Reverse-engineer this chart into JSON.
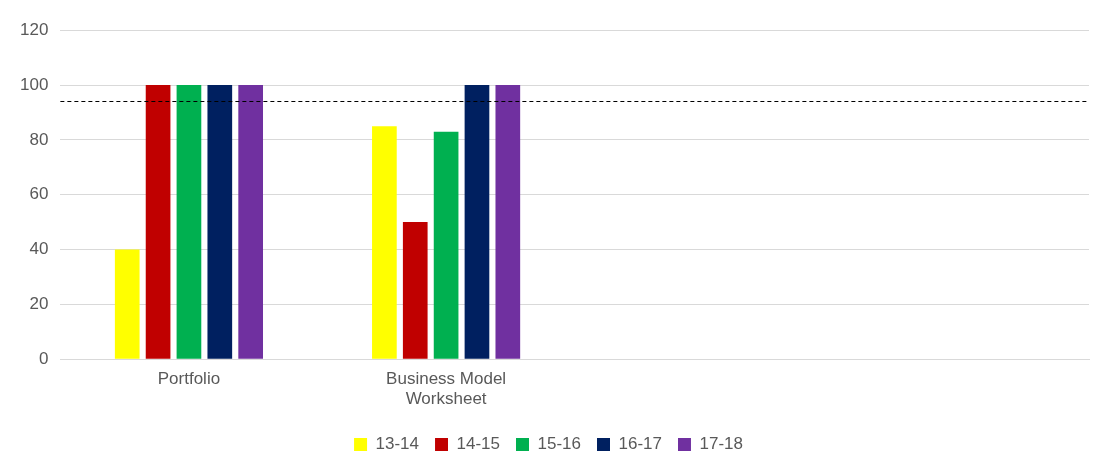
{
  "chart_data": {
    "type": "bar",
    "categories": [
      "Portfolio",
      "Business Model Worksheet",
      null,
      null
    ],
    "series": [
      {
        "name": "13-14",
        "color": "#ffff00",
        "values": [
          40,
          85,
          null,
          null
        ]
      },
      {
        "name": "14-15",
        "color": "#c00000",
        "values": [
          100,
          50,
          null,
          null
        ]
      },
      {
        "name": "15-16",
        "color": "#00b050",
        "values": [
          100,
          83,
          null,
          null
        ]
      },
      {
        "name": "16-17",
        "color": "#002060",
        "values": [
          100,
          100,
          null,
          null
        ]
      },
      {
        "name": "17-18",
        "color": "#7030a0",
        "values": [
          100,
          100,
          null,
          null
        ]
      }
    ],
    "ylim": [
      0,
      120
    ],
    "yticks": [
      0,
      20,
      40,
      60,
      80,
      100,
      120
    ],
    "grid": "y",
    "legend": "bottom",
    "ref_lines": [
      {
        "axis": "y",
        "value": 94,
        "color": "#000000",
        "line_style": "dashed"
      }
    ]
  }
}
